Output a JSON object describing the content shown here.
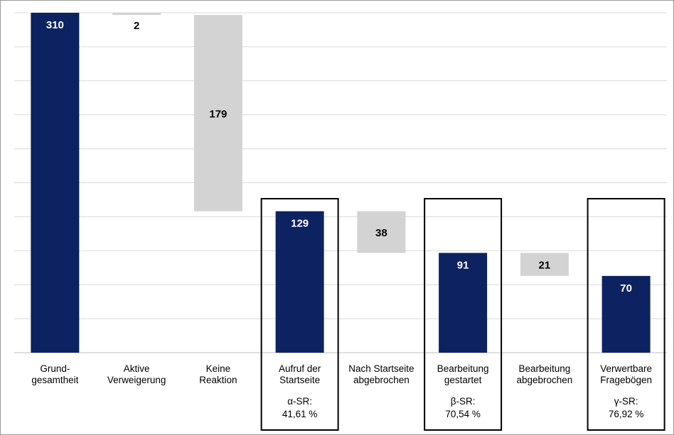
{
  "chart_data": {
    "type": "bar",
    "subtype": "waterfall",
    "categories": [
      "Grund-\ngesamtheit",
      "Aktive\nVerweigerung",
      "Keine\nReaktion",
      "Aufruf der\nStartseite",
      "Nach Startseite\nabgebrochen",
      "Bearbeitung\ngestartet",
      "Bearbeitung\nabgebrochen",
      "Verwertbare\nFragebögen"
    ],
    "values": [
      310,
      2,
      179,
      129,
      38,
      91,
      21,
      70
    ],
    "bar_kind": [
      "total",
      "decrease",
      "decrease",
      "total",
      "decrease",
      "total",
      "decrease",
      "total"
    ],
    "data_labels": [
      "310",
      "2",
      "179",
      "129",
      "38",
      "91",
      "21",
      "70"
    ],
    "rate_labels": [
      {
        "category_index": 3,
        "name": "α-SR:",
        "value": "41,61 %"
      },
      {
        "category_index": 5,
        "name": "β-SR:",
        "value": "70,54 %"
      },
      {
        "category_index": 7,
        "name": "γ-SR:",
        "value": "76,92 %"
      }
    ],
    "highlighted_categories": [
      3,
      5,
      7
    ],
    "ylim": [
      0,
      310
    ],
    "grid": true,
    "legend": "none",
    "colors": {
      "total": "#0d2260",
      "decrease": "#d3d3d3",
      "grid": "#d9d9d9",
      "highlight_box": "#000000",
      "total_label": "#ffffff",
      "decrease_label": "#000000"
    }
  }
}
